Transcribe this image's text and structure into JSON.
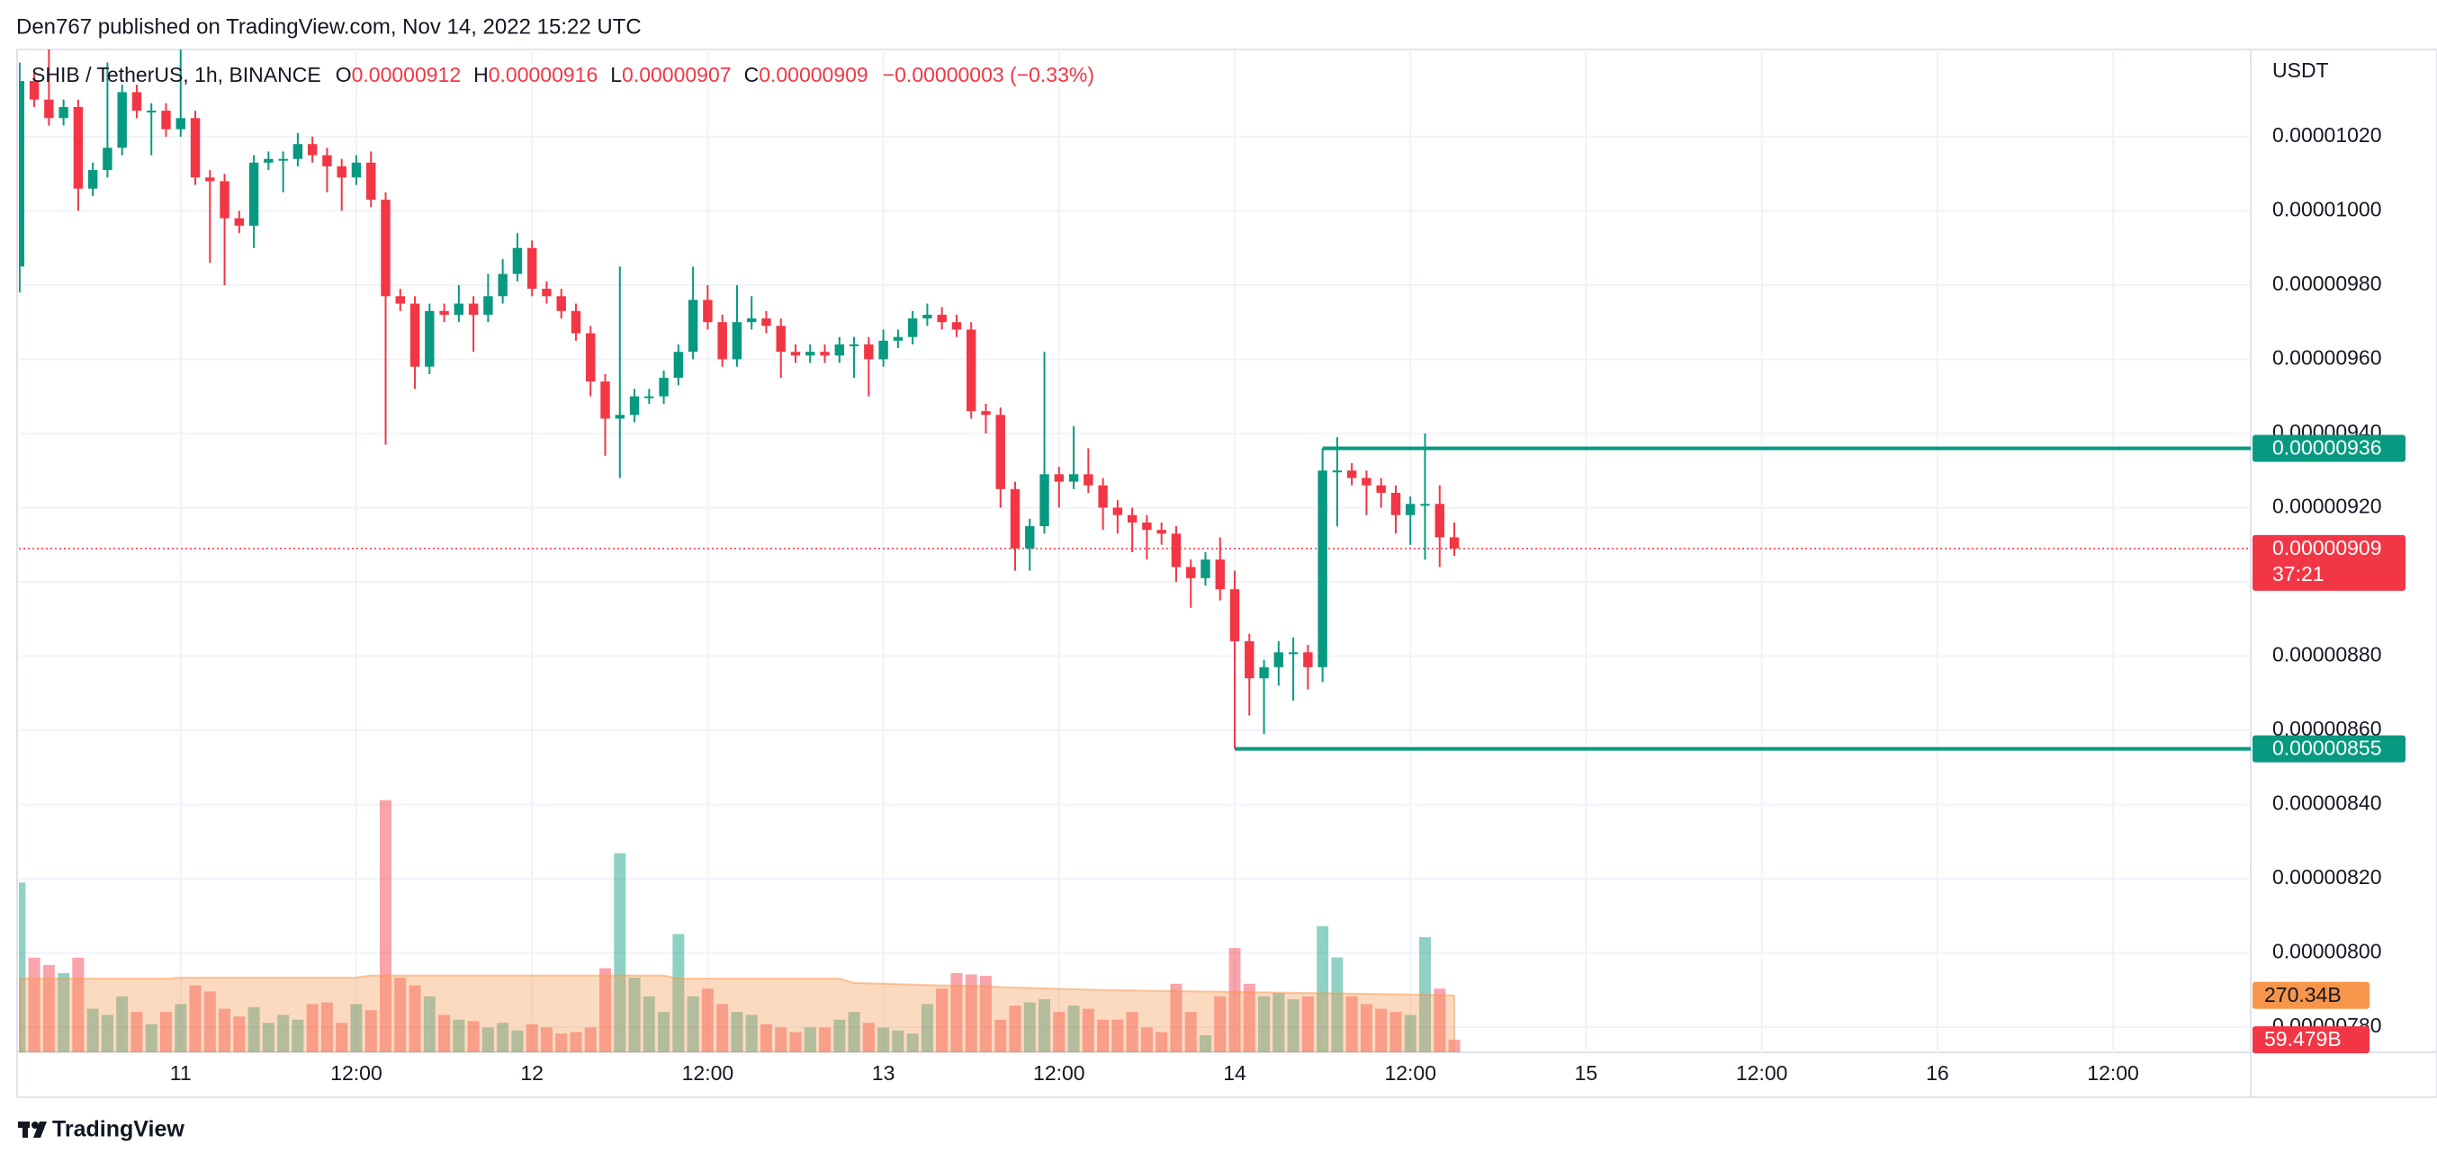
{
  "chart_data": {
    "type": "candlestick",
    "attribution": "Den767 published on TradingView.com, Nov 14, 2022 15:22 UTC",
    "symbol": "SHIB / TetherUS, 1h, BINANCE",
    "ohlc_legend": [
      {
        "key": "O",
        "value": 9.12e-06,
        "label": "0.00000912"
      },
      {
        "key": "H",
        "value": 9.16e-06,
        "label": "0.00000916"
      },
      {
        "key": "L",
        "value": 9.07e-06,
        "label": "0.00000907"
      },
      {
        "key": "C",
        "value": 9.09e-06,
        "label": "0.00000909"
      }
    ],
    "change": "−0.00000003 (−0.33%)",
    "currency": "USDT",
    "logo": "TradingView",
    "x": [
      -11,
      -10,
      -9,
      -8,
      -7,
      -6,
      -5,
      -4,
      -3,
      -2,
      -1,
      0,
      1,
      2,
      3,
      4,
      5,
      6,
      7,
      8,
      9,
      10,
      11,
      12,
      13,
      14,
      15,
      16,
      17,
      18,
      19,
      20,
      21,
      22,
      23,
      24,
      25,
      26,
      27,
      28,
      29,
      30,
      31,
      32,
      33,
      34,
      35,
      36,
      37,
      38,
      39,
      40,
      41,
      42,
      43,
      44,
      45,
      46,
      47,
      48,
      49,
      50,
      51,
      52,
      53,
      54,
      55,
      56,
      57,
      58,
      59,
      60,
      61,
      62,
      63,
      64,
      65,
      66,
      67,
      68,
      69,
      70,
      71,
      72,
      73,
      74,
      75,
      76,
      77,
      78,
      79,
      80,
      81,
      82,
      83,
      84,
      85,
      86,
      87
    ],
    "open": [
      9.85e-06,
      1.035e-05,
      1.03e-05,
      1.025e-05,
      1.028e-05,
      1.006e-05,
      1.011e-05,
      1.017e-05,
      1.032e-05,
      1.027e-05,
      1.027e-05,
      1.022e-05,
      1.025e-05,
      1.009e-05,
      1.008e-05,
      9.98e-06,
      9.96e-06,
      1.013e-05,
      1.014e-05,
      1.014e-05,
      1.018e-05,
      1.015e-05,
      1.012e-05,
      1.009e-05,
      1.013e-05,
      1.003e-05,
      9.77e-06,
      9.75e-06,
      9.58e-06,
      9.73e-06,
      9.72e-06,
      9.75e-06,
      9.72e-06,
      9.77e-06,
      9.83e-06,
      9.9e-06,
      9.79e-06,
      9.77e-06,
      9.73e-06,
      9.67e-06,
      9.54e-06,
      9.44e-06,
      9.45e-06,
      9.5e-06,
      9.5e-06,
      9.55e-06,
      9.62e-06,
      9.76e-06,
      9.7e-06,
      9.6e-06,
      9.7e-06,
      9.71e-06,
      9.69e-06,
      9.62e-06,
      9.61e-06,
      9.62e-06,
      9.61e-06,
      9.64e-06,
      9.64e-06,
      9.6e-06,
      9.65e-06,
      9.66e-06,
      9.71e-06,
      9.72e-06,
      9.7e-06,
      9.68e-06,
      9.46e-06,
      9.45e-06,
      9.25e-06,
      9.09e-06,
      9.15e-06,
      9.29e-06,
      9.27e-06,
      9.29e-06,
      9.26e-06,
      9.2e-06,
      9.18e-06,
      9.16e-06,
      9.14e-06,
      9.13e-06,
      9.04e-06,
      9.01e-06,
      9.06e-06,
      8.98e-06,
      8.84e-06,
      8.74e-06,
      8.77e-06,
      8.81e-06,
      8.81e-06,
      8.77e-06,
      9.3e-06,
      9.3e-06,
      9.28e-06,
      9.26e-06,
      9.24e-06,
      9.18e-06,
      9.21e-06,
      9.21e-06,
      9.12e-06
    ],
    "high": [
      1.04e-05,
      1.037e-05,
      1.044e-05,
      1.03e-05,
      1.03e-05,
      1.013e-05,
      1.04e-05,
      1.034e-05,
      1.034e-05,
      1.029e-05,
      1.029e-05,
      1.044e-05,
      1.027e-05,
      1.011e-05,
      1.01e-05,
      1e-05,
      1.015e-05,
      1.016e-05,
      1.016e-05,
      1.021e-05,
      1.02e-05,
      1.017e-05,
      1.014e-05,
      1.015e-05,
      1.016e-05,
      1.005e-05,
      9.79e-06,
      9.77e-06,
      9.75e-06,
      9.75e-06,
      9.8e-06,
      9.77e-06,
      9.83e-06,
      9.87e-06,
      9.94e-06,
      9.92e-06,
      9.81e-06,
      9.79e-06,
      9.75e-06,
      9.69e-06,
      9.56e-06,
      9.85e-06,
      9.52e-06,
      9.52e-06,
      9.57e-06,
      9.64e-06,
      9.85e-06,
      9.8e-06,
      9.72e-06,
      9.8e-06,
      9.77e-06,
      9.73e-06,
      9.71e-06,
      9.64e-06,
      9.64e-06,
      9.64e-06,
      9.66e-06,
      9.66e-06,
      9.66e-06,
      9.68e-06,
      9.68e-06,
      9.73e-06,
      9.75e-06,
      9.74e-06,
      9.72e-06,
      9.7e-06,
      9.48e-06,
      9.47e-06,
      9.27e-06,
      9.17e-06,
      9.62e-06,
      9.31e-06,
      9.42e-06,
      9.36e-06,
      9.28e-06,
      9.22e-06,
      9.2e-06,
      9.18e-06,
      9.16e-06,
      9.15e-06,
      9.06e-06,
      9.08e-06,
      9.12e-06,
      9.03e-06,
      8.86e-06,
      8.79e-06,
      8.84e-06,
      8.85e-06,
      8.83e-06,
      9.36e-06,
      9.39e-06,
      9.32e-06,
      9.3e-06,
      9.28e-06,
      9.26e-06,
      9.23e-06,
      9.4e-06,
      9.26e-06,
      9.16e-06
    ],
    "low": [
      9.78e-06,
      1.028e-05,
      1.023e-05,
      1.023e-05,
      1e-05,
      1.004e-05,
      1.009e-05,
      1.015e-05,
      1.025e-05,
      1.015e-05,
      1.02e-05,
      1.02e-05,
      1.007e-05,
      9.86e-06,
      9.8e-06,
      9.94e-06,
      9.9e-06,
      1.011e-05,
      1.005e-05,
      1.012e-05,
      1.013e-05,
      1.005e-05,
      1e-05,
      1.007e-05,
      1.001e-05,
      9.37e-06,
      9.73e-06,
      9.52e-06,
      9.56e-06,
      9.7e-06,
      9.7e-06,
      9.62e-06,
      9.7e-06,
      9.75e-06,
      9.81e-06,
      9.77e-06,
      9.75e-06,
      9.71e-06,
      9.65e-06,
      9.5e-06,
      9.34e-06,
      9.28e-06,
      9.43e-06,
      9.48e-06,
      9.48e-06,
      9.53e-06,
      9.6e-06,
      9.68e-06,
      9.58e-06,
      9.58e-06,
      9.68e-06,
      9.67e-06,
      9.55e-06,
      9.59e-06,
      9.59e-06,
      9.59e-06,
      9.59e-06,
      9.55e-06,
      9.5e-06,
      9.58e-06,
      9.63e-06,
      9.64e-06,
      9.69e-06,
      9.68e-06,
      9.66e-06,
      9.44e-06,
      9.4e-06,
      9.2e-06,
      9.03e-06,
      9.03e-06,
      9.13e-06,
      9.2e-06,
      9.25e-06,
      9.24e-06,
      9.14e-06,
      9.13e-06,
      9.08e-06,
      9.06e-06,
      9.1e-06,
      9e-06,
      8.93e-06,
      8.99e-06,
      8.95e-06,
      8.55e-06,
      8.64e-06,
      8.59e-06,
      8.72e-06,
      8.68e-06,
      8.71e-06,
      8.73e-06,
      9.15e-06,
      9.26e-06,
      9.18e-06,
      9.2e-06,
      9.13e-06,
      9.1e-06,
      9.06e-06,
      9.04e-06,
      9.07e-06
    ],
    "close": [
      1.035e-05,
      1.03e-05,
      1.025e-05,
      1.028e-05,
      1.006e-05,
      1.011e-05,
      1.017e-05,
      1.032e-05,
      1.027e-05,
      1.027e-05,
      1.022e-05,
      1.025e-05,
      1.009e-05,
      1.008e-05,
      9.98e-06,
      9.96e-06,
      1.013e-05,
      1.014e-05,
      1.014e-05,
      1.018e-05,
      1.015e-05,
      1.012e-05,
      1.009e-05,
      1.013e-05,
      1.003e-05,
      9.77e-06,
      9.75e-06,
      9.58e-06,
      9.73e-06,
      9.72e-06,
      9.75e-06,
      9.72e-06,
      9.77e-06,
      9.83e-06,
      9.9e-06,
      9.79e-06,
      9.77e-06,
      9.73e-06,
      9.67e-06,
      9.54e-06,
      9.44e-06,
      9.45e-06,
      9.5e-06,
      9.5e-06,
      9.55e-06,
      9.62e-06,
      9.76e-06,
      9.7e-06,
      9.6e-06,
      9.7e-06,
      9.71e-06,
      9.69e-06,
      9.62e-06,
      9.61e-06,
      9.62e-06,
      9.61e-06,
      9.64e-06,
      9.64e-06,
      9.6e-06,
      9.65e-06,
      9.66e-06,
      9.71e-06,
      9.72e-06,
      9.7e-06,
      9.68e-06,
      9.46e-06,
      9.45e-06,
      9.25e-06,
      9.09e-06,
      9.15e-06,
      9.29e-06,
      9.27e-06,
      9.29e-06,
      9.26e-06,
      9.2e-06,
      9.18e-06,
      9.16e-06,
      9.14e-06,
      9.13e-06,
      9.04e-06,
      9.01e-06,
      9.06e-06,
      8.98e-06,
      8.84e-06,
      8.74e-06,
      8.77e-06,
      8.81e-06,
      8.81e-06,
      8.77e-06,
      9.3e-06,
      9.3e-06,
      9.28e-06,
      9.26e-06,
      9.24e-06,
      9.18e-06,
      9.21e-06,
      9.21e-06,
      9.12e-06,
      9.09e-06
    ],
    "volume": [
      807,
      450,
      415,
      377,
      450,
      207,
      178,
      266,
      192,
      133,
      192,
      229,
      318,
      289,
      207,
      170,
      215,
      140,
      178,
      155,
      229,
      237,
      140,
      229,
      200,
      1199,
      355,
      318,
      266,
      178,
      155,
      148,
      118,
      140,
      104,
      133,
      118,
      89,
      96,
      118,
      400,
      947,
      355,
      266,
      192,
      562,
      266,
      303,
      229,
      192,
      178,
      133,
      118,
      96,
      118,
      118,
      155,
      192,
      140,
      118,
      104,
      89,
      229,
      303,
      377,
      370,
      363,
      155,
      222,
      237,
      252,
      192,
      222,
      207,
      155,
      155,
      192,
      118,
      96,
      326,
      192,
      81,
      266,
      496,
      326,
      266,
      281,
      252,
      266,
      600,
      451,
      266,
      229,
      207,
      192,
      178,
      548,
      303,
      59.479
    ],
    "volume_ma": [
      350,
      350,
      350,
      350,
      350,
      350,
      350,
      350,
      350,
      350,
      350,
      355,
      355,
      355,
      355,
      355,
      355,
      355,
      355,
      355,
      355,
      355,
      355,
      355,
      365,
      365,
      365,
      365,
      365,
      365,
      365,
      365,
      365,
      365,
      365,
      365,
      365,
      365,
      365,
      365,
      365,
      365,
      365,
      365,
      365,
      350,
      350,
      350,
      350,
      350,
      350,
      350,
      350,
      350,
      350,
      350,
      350,
      330,
      328,
      326,
      324,
      322,
      320,
      318,
      317,
      316,
      315,
      310,
      308,
      306,
      304,
      302,
      300,
      298,
      296,
      295,
      294,
      293,
      292,
      291,
      290,
      289,
      288,
      287,
      286,
      285,
      284,
      283,
      282,
      281,
      280,
      279,
      278,
      277,
      276,
      275,
      274,
      272,
      270.34
    ],
    "xlim": [
      -11.05,
      141.4
    ],
    "xticks": [
      {
        "value": 0,
        "label": "11"
      },
      {
        "value": 12,
        "label": "12:00"
      },
      {
        "value": 24,
        "label": "12"
      },
      {
        "value": 36,
        "label": "12:00"
      },
      {
        "value": 48,
        "label": "13"
      },
      {
        "value": 60,
        "label": "12:00"
      },
      {
        "value": 72,
        "label": "14"
      },
      {
        "value": 84,
        "label": "12:00"
      },
      {
        "value": 96,
        "label": "15"
      },
      {
        "value": 108,
        "label": "12:00"
      },
      {
        "value": 120,
        "label": "16"
      },
      {
        "value": 132,
        "label": "12:00"
      }
    ],
    "ylim": [
      7.732e-06,
      1.0435e-05
    ],
    "yticks": [
      {
        "value": 7.8e-06,
        "label": "0.00000780"
      },
      {
        "value": 8e-06,
        "label": "0.00000800"
      },
      {
        "value": 8.2e-06,
        "label": "0.00000820"
      },
      {
        "value": 8.4e-06,
        "label": "0.00000840"
      },
      {
        "value": 8.6e-06,
        "label": "0.00000860"
      },
      {
        "value": 8.8e-06,
        "label": "0.00000880"
      },
      {
        "value": 9e-06,
        "label": "0.00000900"
      },
      {
        "value": 9.2e-06,
        "label": "0.00000920"
      },
      {
        "value": 9.4e-06,
        "label": "0.00000940"
      },
      {
        "value": 9.6e-06,
        "label": "0.00000960"
      },
      {
        "value": 9.8e-06,
        "label": "0.00000980"
      },
      {
        "value": 1e-05,
        "label": "0.00001000"
      },
      {
        "value": 1.02e-05,
        "label": "0.00001020"
      }
    ],
    "volume_ylim": [
      0,
      4770
    ],
    "grid": true,
    "up_color": "#089981",
    "down_color": "#f23645",
    "volume_up_color": "rgba(8,153,129,0.45)",
    "volume_down_color": "rgba(242,54,69,0.45)",
    "volume_ma_color": "#f7954a",
    "levels": [
      {
        "value": 9.36e-06,
        "label": "0.00000936",
        "start": 78
      },
      {
        "value": 8.55e-06,
        "label": "0.00000855",
        "start": 72
      }
    ],
    "last_price": {
      "value": 9.09e-06,
      "label": "0.00000909",
      "countdown": "37:21"
    },
    "volume_ma_last": {
      "value": 270.34,
      "label": "270.34B"
    },
    "volume_last": {
      "value": 59.479,
      "label": "59.479B"
    }
  }
}
